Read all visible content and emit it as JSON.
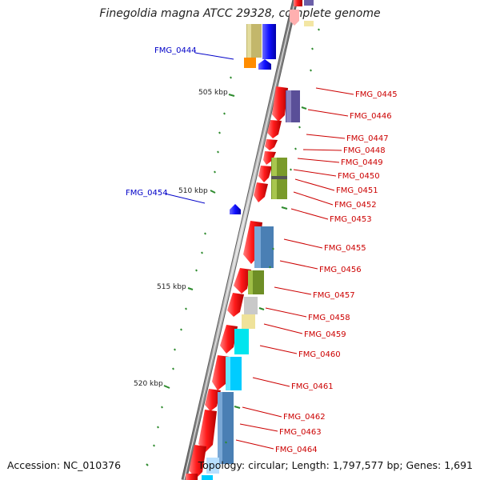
{
  "title": "Finegoldia magna ATCC 29328, complete genome",
  "footer": {
    "accession": "Accession: NC_010376",
    "info": "Topology: circular; Length: 1,797,577 bp; Genes: 1,691"
  },
  "colors": {
    "forward_gene": "#ff0000",
    "reverse_gene": "#0000ff",
    "feature_tick": "#2e8b2e",
    "backbone": "#8c8c8c",
    "label_reverse": "#0000c8",
    "label_forward": "#cc0000"
  },
  "position_marks": [
    "505 kbp",
    "510 kbp",
    "515 kbp",
    "520 kbp"
  ],
  "gene_labels": {
    "reverse": [
      "FMG_0444",
      "FMG_0454"
    ],
    "forward": [
      "FMG_0445",
      "FMG_0446",
      "FMG_0447",
      "FMG_0448",
      "FMG_0449",
      "FMG_0450",
      "FMG_0451",
      "FMG_0452",
      "FMG_0453",
      "FMG_0455",
      "FMG_0456",
      "FMG_0457",
      "FMG_0458",
      "FMG_0459",
      "FMG_0460",
      "FMG_0461",
      "FMG_0462",
      "FMG_0463",
      "FMG_0464"
    ]
  }
}
